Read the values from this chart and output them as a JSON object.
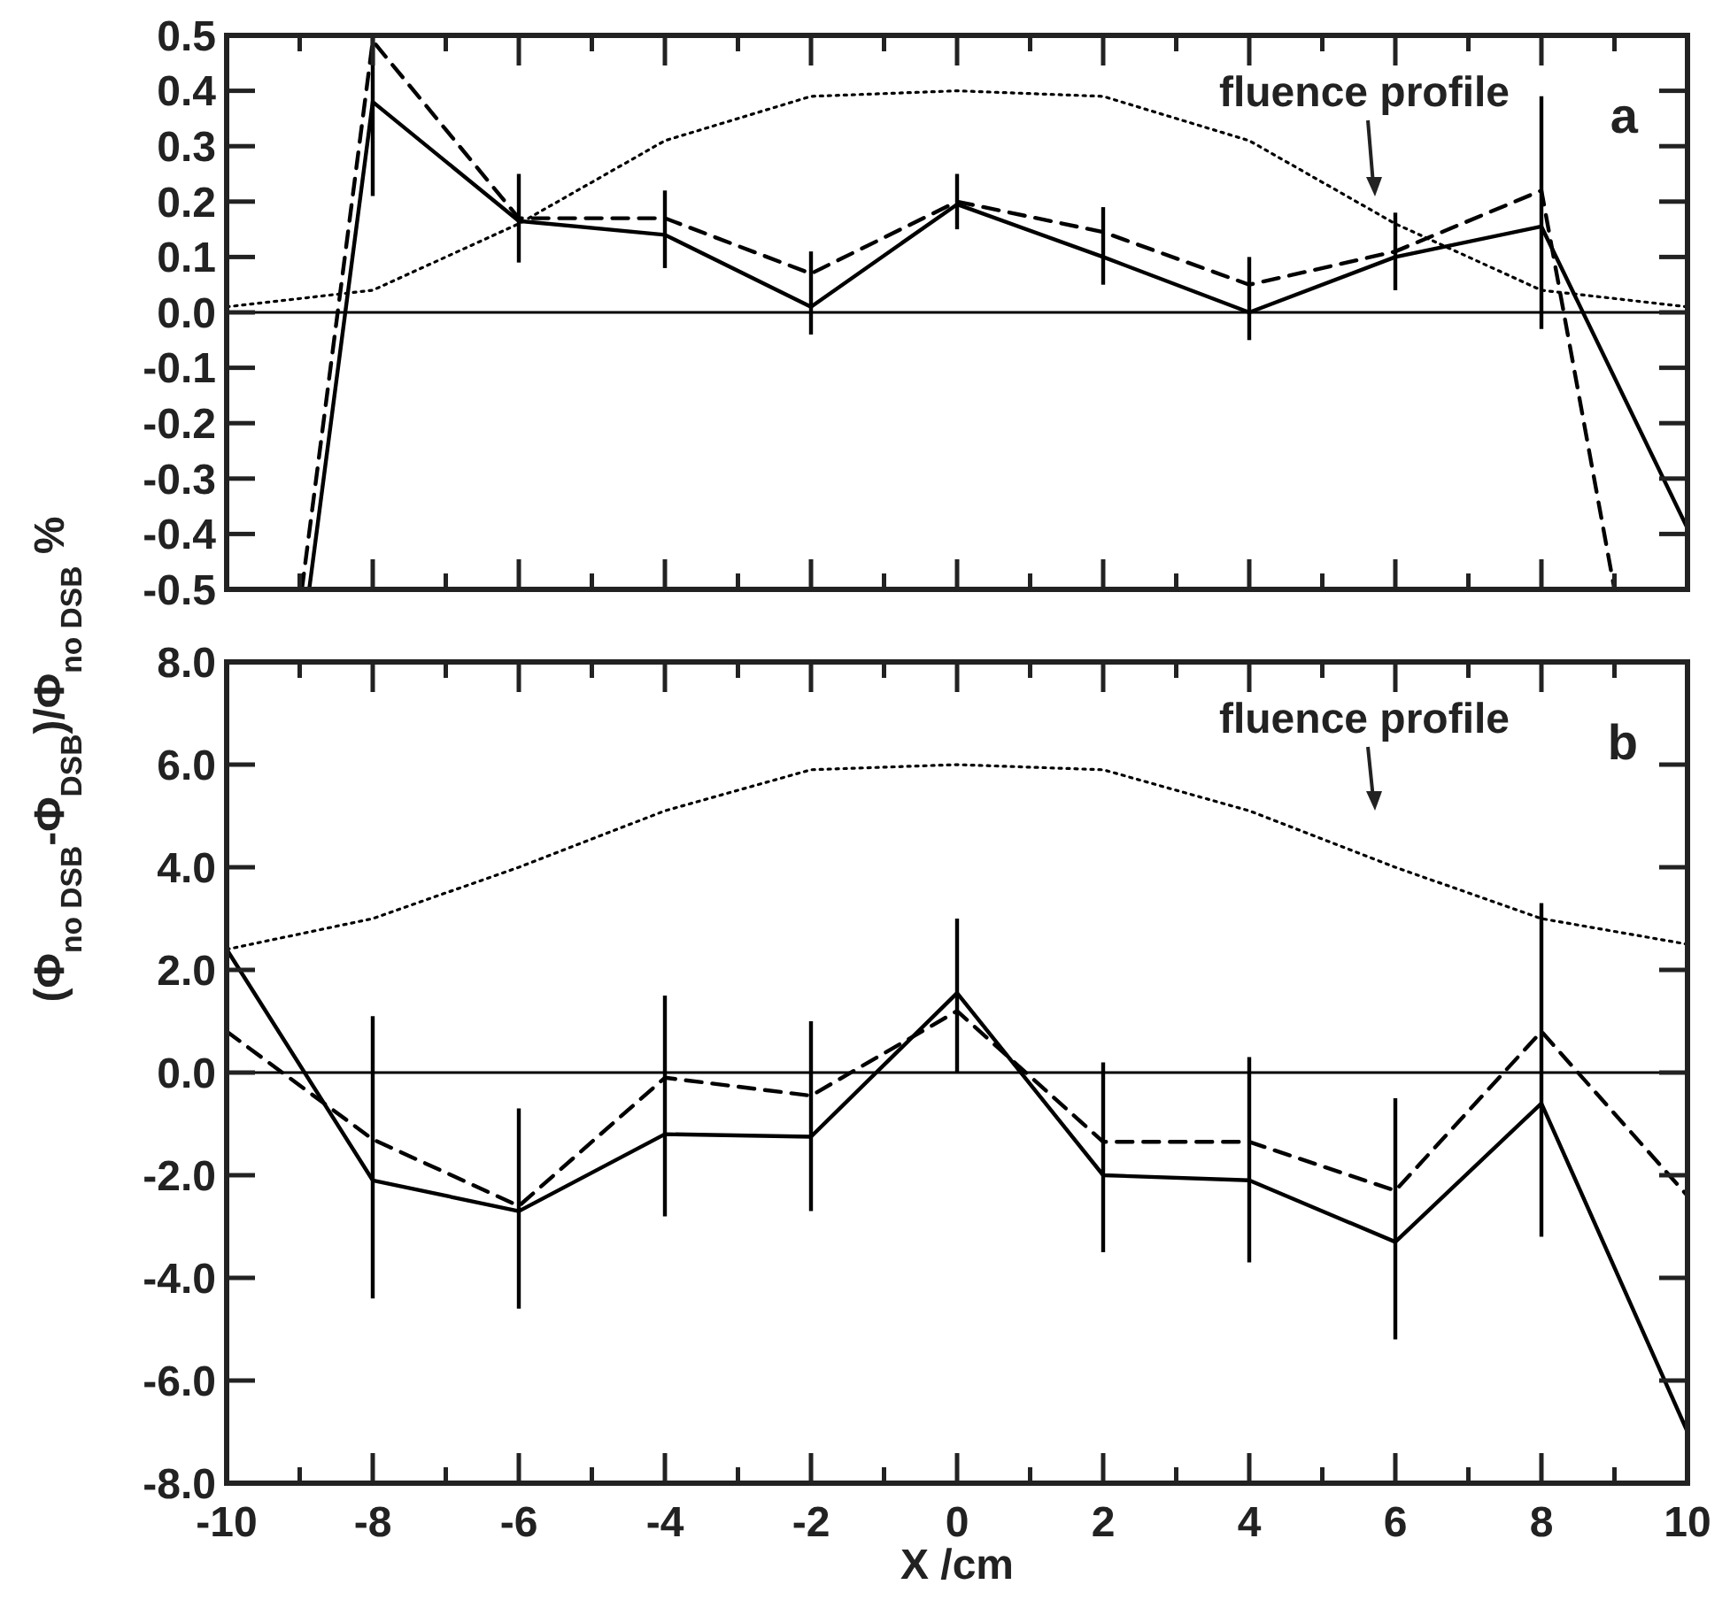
{
  "chart_data": [
    {
      "type": "line",
      "ylabel": "(Φ$_{no DSB}$-Φ$_{DSB}$)/Φ$_{no DSB}$ %",
      "annotations": [
        "fluence profile",
        "a"
      ],
      "tick_labels": "y",
      "xlim": [
        -10,
        10
      ],
      "xticks": [
        {
          "value": -10,
          "label": null
        },
        {
          "value": -9,
          "label": null
        },
        {
          "value": -8,
          "label": null
        },
        {
          "value": -7,
          "label": null
        },
        {
          "value": -6,
          "label": null
        },
        {
          "value": -5,
          "label": null
        },
        {
          "value": -4,
          "label": null
        },
        {
          "value": -3,
          "label": null
        },
        {
          "value": -2,
          "label": null
        },
        {
          "value": -1,
          "label": null
        },
        {
          "value": 0,
          "label": null
        },
        {
          "value": 1,
          "label": null
        },
        {
          "value": 2,
          "label": null
        },
        {
          "value": 3,
          "label": null
        },
        {
          "value": 4,
          "label": null
        },
        {
          "value": 5,
          "label": null
        },
        {
          "value": 6,
          "label": null
        },
        {
          "value": 7,
          "label": null
        },
        {
          "value": 8,
          "label": null
        },
        {
          "value": 9,
          "label": null
        },
        {
          "value": 10,
          "label": null
        }
      ],
      "ylim": [
        -0.5,
        0.5
      ],
      "yticks": [
        {
          "value": -0.5,
          "label": "-0.5"
        },
        {
          "value": -0.4,
          "label": "-0.4"
        },
        {
          "value": -0.3,
          "label": "-0.3"
        },
        {
          "value": -0.2,
          "label": "-0.2"
        },
        {
          "value": -0.1,
          "label": "-0.1"
        },
        {
          "value": 0,
          "label": "0.0"
        },
        {
          "value": 0.1,
          "label": "0.1"
        },
        {
          "value": 0.2,
          "label": "0.2"
        },
        {
          "value": 0.3,
          "label": "0.3"
        },
        {
          "value": 0.4,
          "label": "0.4"
        },
        {
          "value": 0.5,
          "label": "0.5"
        }
      ],
      "ref_lines": [
        {
          "axis": "y",
          "value": 0,
          "color": "#000000"
        }
      ],
      "series": [
        {
          "color": "#000000",
          "line_style": "solid",
          "x": [
            -8.87,
            -8,
            -6,
            -4,
            -2,
            0,
            2,
            4,
            6,
            8,
            10
          ],
          "values": [
            -0.5,
            0.38,
            0.165,
            0.14,
            0.01,
            0.195,
            0.1,
            0.0,
            0.1,
            0.155,
            -0.39
          ],
          "errors": [
            null,
            [
              0.21,
              0.5
            ],
            [
              0.09,
              0.25
            ],
            [
              0.08,
              0.22
            ],
            [
              -0.04,
              0.11
            ],
            [
              0.15,
              0.25
            ],
            [
              0.05,
              0.19
            ],
            [
              -0.05,
              0.1
            ],
            [
              0.04,
              0.18
            ],
            [
              -0.03,
              0.39
            ],
            null
          ]
        },
        {
          "color": "#000000",
          "line_style": "dashed",
          "x": [
            -8.97,
            -8,
            -6,
            -4,
            -2,
            0,
            2,
            4,
            6,
            8,
            9.0
          ],
          "values": [
            -0.5,
            0.49,
            0.17,
            0.17,
            0.07,
            0.2,
            0.145,
            0.05,
            0.11,
            0.22,
            -0.5
          ]
        },
        {
          "color": "#000000",
          "line_style": "dotted",
          "x": [
            -10,
            -8,
            -6,
            -4,
            -2,
            0,
            2,
            4,
            6,
            8,
            10
          ],
          "values": [
            0.01,
            0.04,
            0.16,
            0.31,
            0.39,
            0.4,
            0.39,
            0.31,
            0.16,
            0.04,
            0.01
          ]
        }
      ]
    },
    {
      "type": "line",
      "xlabel": "X /cm",
      "annotations": [
        "fluence profile",
        "b"
      ],
      "xlim": [
        -10,
        10
      ],
      "xticks": [
        {
          "value": -10,
          "label": "-10"
        },
        {
          "value": -9,
          "label": null
        },
        {
          "value": -8,
          "label": "-8"
        },
        {
          "value": -7,
          "label": null
        },
        {
          "value": -6,
          "label": "-6"
        },
        {
          "value": -5,
          "label": null
        },
        {
          "value": -4,
          "label": "-4"
        },
        {
          "value": -3,
          "label": null
        },
        {
          "value": -2,
          "label": "-2"
        },
        {
          "value": -1,
          "label": null
        },
        {
          "value": 0,
          "label": "0"
        },
        {
          "value": 1,
          "label": null
        },
        {
          "value": 2,
          "label": "2"
        },
        {
          "value": 3,
          "label": null
        },
        {
          "value": 4,
          "label": "4"
        },
        {
          "value": 5,
          "label": null
        },
        {
          "value": 6,
          "label": "6"
        },
        {
          "value": 7,
          "label": null
        },
        {
          "value": 8,
          "label": "8"
        },
        {
          "value": 9,
          "label": null
        },
        {
          "value": 10,
          "label": "10"
        }
      ],
      "ylim": [
        -8,
        8
      ],
      "yticks": [
        {
          "value": -8,
          "label": "-8.0"
        },
        {
          "value": -6,
          "label": "-6.0"
        },
        {
          "value": -4,
          "label": "-4.0"
        },
        {
          "value": -2,
          "label": "-2.0"
        },
        {
          "value": 0,
          "label": "0.0"
        },
        {
          "value": 2,
          "label": "2.0"
        },
        {
          "value": 4,
          "label": "4.0"
        },
        {
          "value": 6,
          "label": "6.0"
        },
        {
          "value": 8,
          "label": "8.0"
        }
      ],
      "ref_lines": [
        {
          "axis": "y",
          "value": 0,
          "color": "#000000"
        }
      ],
      "series": [
        {
          "color": "#000000",
          "line_style": "solid",
          "x": [
            -10,
            -8,
            -6,
            -4,
            -2,
            0,
            2,
            4,
            6,
            8,
            10
          ],
          "values": [
            2.4,
            -2.1,
            -2.7,
            -1.2,
            -1.25,
            1.55,
            -2.0,
            -2.1,
            -3.3,
            -0.6,
            -7.0
          ],
          "errors": [
            null,
            [
              -4.4,
              1.1
            ],
            [
              -4.6,
              -0.7
            ],
            [
              -2.8,
              1.5
            ],
            [
              -2.7,
              1.0
            ],
            [
              0.0,
              3.0
            ],
            [
              -3.5,
              0.2
            ],
            [
              -3.7,
              0.3
            ],
            [
              -5.2,
              -0.5
            ],
            [
              -3.2,
              3.3
            ],
            null
          ]
        },
        {
          "color": "#000000",
          "line_style": "dashed",
          "x": [
            -10,
            -8,
            -6,
            -4,
            -2,
            0,
            2,
            4,
            6,
            8,
            10
          ],
          "values": [
            0.8,
            -1.3,
            -2.6,
            -0.1,
            -0.45,
            1.2,
            -1.35,
            -1.35,
            -2.3,
            0.8,
            -2.4
          ]
        },
        {
          "color": "#000000",
          "line_style": "dotted",
          "x": [
            -10,
            -8,
            -6,
            -4,
            -2,
            0,
            2,
            4,
            6,
            8,
            10
          ],
          "values": [
            2.4,
            3.0,
            4.0,
            5.1,
            5.9,
            6.0,
            5.9,
            5.1,
            4.0,
            3.0,
            2.5
          ]
        }
      ]
    }
  ]
}
